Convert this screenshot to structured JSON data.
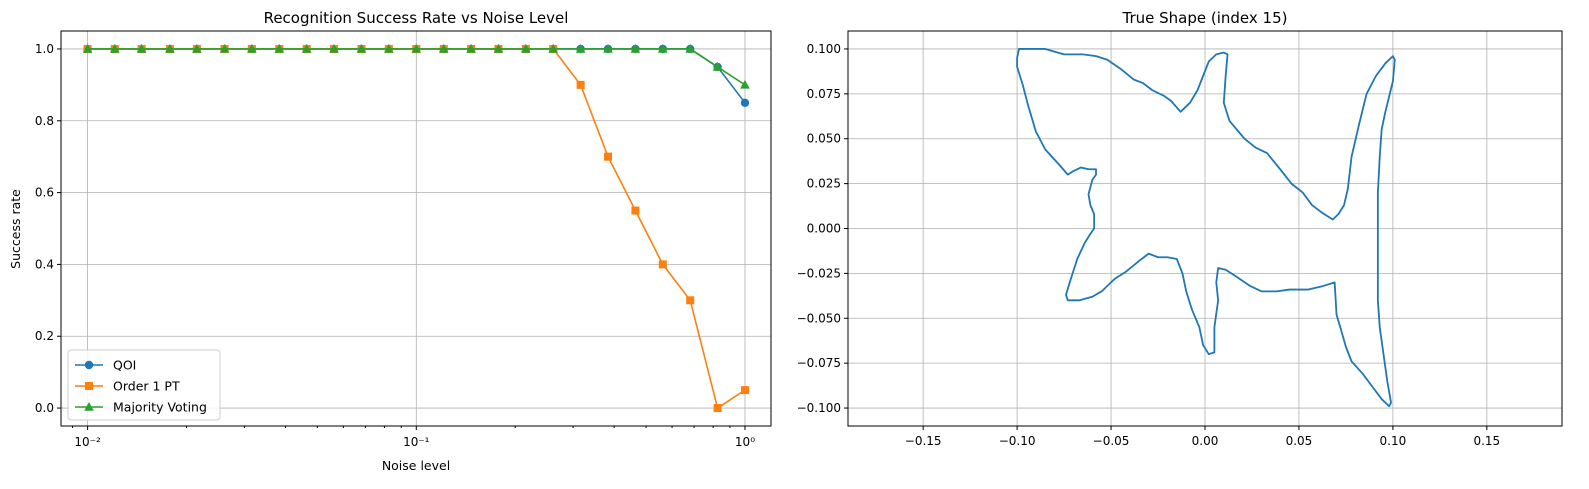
{
  "chart_data": [
    {
      "type": "line",
      "title": "Recognition Success Rate vs Noise Level",
      "xlabel": "Noise level",
      "ylabel": "Success rate",
      "xscale": "log",
      "xlim": [
        0.0083,
        1.2
      ],
      "ylim": [
        -0.05,
        1.05
      ],
      "grid": true,
      "legend_position": "lower-left",
      "xticks": [
        {
          "value": 0.01,
          "label": "10⁻²"
        },
        {
          "value": 0.1,
          "label": "10⁻¹"
        },
        {
          "value": 1,
          "label": "10⁰"
        }
      ],
      "yticks": [
        {
          "value": 0.0,
          "label": "0.0"
        },
        {
          "value": 0.2,
          "label": "0.2"
        },
        {
          "value": 0.4,
          "label": "0.4"
        },
        {
          "value": 0.6,
          "label": "0.6"
        },
        {
          "value": 0.8,
          "label": "0.8"
        },
        {
          "value": 1.0,
          "label": "1.0"
        }
      ],
      "x": [
        0.01,
        0.0121,
        0.0146,
        0.0178,
        0.0215,
        0.0261,
        0.0316,
        0.0383,
        0.0464,
        0.0562,
        0.0681,
        0.0825,
        0.1,
        0.1212,
        0.1468,
        0.1778,
        0.2154,
        0.261,
        0.3162,
        0.3831,
        0.4642,
        0.5623,
        0.6813,
        0.8254,
        1.0
      ],
      "series": [
        {
          "name": "QOI",
          "color": "#1f77b4",
          "marker": "circle",
          "values": [
            1,
            1,
            1,
            1,
            1,
            1,
            1,
            1,
            1,
            1,
            1,
            1,
            1,
            1,
            1,
            1,
            1,
            1,
            1,
            1,
            1,
            1,
            1,
            0.95,
            0.85
          ]
        },
        {
          "name": "Order 1 PT",
          "color": "#ff7f0e",
          "marker": "square",
          "values": [
            1,
            1,
            1,
            1,
            1,
            1,
            1,
            1,
            1,
            1,
            1,
            1,
            1,
            1,
            1,
            1,
            1,
            1,
            0.9,
            0.7,
            0.55,
            0.4,
            0.3,
            0.0,
            0.05
          ]
        },
        {
          "name": "Majority Voting",
          "color": "#2ca02c",
          "marker": "triangle",
          "values": [
            1,
            1,
            1,
            1,
            1,
            1,
            1,
            1,
            1,
            1,
            1,
            1,
            1,
            1,
            1,
            1,
            1,
            1,
            1,
            1,
            1,
            1,
            1,
            0.95,
            0.9
          ]
        }
      ]
    },
    {
      "type": "line",
      "title": "True Shape (index 15)",
      "xlabel": "",
      "ylabel": "",
      "xlim": [
        -0.19,
        0.19
      ],
      "ylim": [
        -0.11,
        0.11
      ],
      "grid": true,
      "xticks": [
        {
          "value": -0.15,
          "label": "−0.15"
        },
        {
          "value": -0.1,
          "label": "−0.10"
        },
        {
          "value": -0.05,
          "label": "−0.05"
        },
        {
          "value": 0.0,
          "label": "0.00"
        },
        {
          "value": 0.05,
          "label": "0.05"
        },
        {
          "value": 0.1,
          "label": "0.10"
        },
        {
          "value": 0.15,
          "label": "0.15"
        }
      ],
      "yticks": [
        {
          "value": -0.1,
          "label": "−0.100"
        },
        {
          "value": -0.075,
          "label": "−0.075"
        },
        {
          "value": -0.05,
          "label": "−0.050"
        },
        {
          "value": -0.025,
          "label": "−0.025"
        },
        {
          "value": 0.0,
          "label": "0.000"
        },
        {
          "value": 0.025,
          "label": "0.025"
        },
        {
          "value": 0.05,
          "label": "0.050"
        },
        {
          "value": 0.075,
          "label": "0.075"
        },
        {
          "value": 0.1,
          "label": "0.100"
        }
      ],
      "series": [
        {
          "color": "#1f77b4",
          "points": [
            [
              -0.1,
              0.095
            ],
            [
              -0.099,
              0.1
            ],
            [
              -0.095,
              0.1
            ],
            [
              -0.085,
              0.1
            ],
            [
              -0.075,
              0.097
            ],
            [
              -0.065,
              0.097
            ],
            [
              -0.058,
              0.096
            ],
            [
              -0.052,
              0.094
            ],
            [
              -0.045,
              0.089
            ],
            [
              -0.038,
              0.083
            ],
            [
              -0.033,
              0.081
            ],
            [
              -0.028,
              0.077
            ],
            [
              -0.022,
              0.074
            ],
            [
              -0.018,
              0.071
            ],
            [
              -0.013,
              0.065
            ],
            [
              -0.008,
              0.07
            ],
            [
              -0.004,
              0.077
            ],
            [
              -0.001,
              0.085
            ],
            [
              0.002,
              0.093
            ],
            [
              0.006,
              0.097
            ],
            [
              0.01,
              0.098
            ],
            [
              0.012,
              0.097
            ],
            [
              0.011,
              0.085
            ],
            [
              0.01,
              0.07
            ],
            [
              0.013,
              0.06
            ],
            [
              0.017,
              0.055
            ],
            [
              0.021,
              0.05
            ],
            [
              0.027,
              0.045
            ],
            [
              0.033,
              0.042
            ],
            [
              0.04,
              0.033
            ],
            [
              0.046,
              0.025
            ],
            [
              0.052,
              0.02
            ],
            [
              0.057,
              0.013
            ],
            [
              0.062,
              0.009
            ],
            [
              0.068,
              0.005
            ],
            [
              0.071,
              0.008
            ],
            [
              0.074,
              0.013
            ],
            [
              0.076,
              0.022
            ],
            [
              0.078,
              0.04
            ],
            [
              0.082,
              0.058
            ],
            [
              0.086,
              0.075
            ],
            [
              0.091,
              0.085
            ],
            [
              0.096,
              0.092
            ],
            [
              0.1,
              0.096
            ],
            [
              0.101,
              0.094
            ],
            [
              0.1,
              0.082
            ],
            [
              0.096,
              0.065
            ],
            [
              0.094,
              0.055
            ],
            [
              0.093,
              0.04
            ],
            [
              0.092,
              0.02
            ],
            [
              0.092,
              0.0
            ],
            [
              0.092,
              -0.02
            ],
            [
              0.092,
              -0.04
            ],
            [
              0.093,
              -0.055
            ],
            [
              0.095,
              -0.07
            ],
            [
              0.097,
              -0.085
            ],
            [
              0.099,
              -0.097
            ],
            [
              0.098,
              -0.099
            ],
            [
              0.094,
              -0.095
            ],
            [
              0.089,
              -0.088
            ],
            [
              0.084,
              -0.081
            ],
            [
              0.078,
              -0.074
            ],
            [
              0.075,
              -0.066
            ],
            [
              0.072,
              -0.055
            ],
            [
              0.07,
              -0.048
            ],
            [
              0.069,
              -0.03
            ],
            [
              0.063,
              -0.032
            ],
            [
              0.055,
              -0.034
            ],
            [
              0.045,
              -0.034
            ],
            [
              0.038,
              -0.035
            ],
            [
              0.03,
              -0.035
            ],
            [
              0.024,
              -0.032
            ],
            [
              0.017,
              -0.027
            ],
            [
              0.011,
              -0.023
            ],
            [
              0.007,
              -0.022
            ],
            [
              0.006,
              -0.03
            ],
            [
              0.007,
              -0.04
            ],
            [
              0.005,
              -0.055
            ],
            [
              0.005,
              -0.069
            ],
            [
              0.002,
              -0.07
            ],
            [
              -0.001,
              -0.065
            ],
            [
              -0.003,
              -0.055
            ],
            [
              -0.007,
              -0.045
            ],
            [
              -0.01,
              -0.035
            ],
            [
              -0.012,
              -0.025
            ],
            [
              -0.015,
              -0.017
            ],
            [
              -0.02,
              -0.016
            ],
            [
              -0.025,
              -0.016
            ],
            [
              -0.03,
              -0.014
            ],
            [
              -0.035,
              -0.018
            ],
            [
              -0.042,
              -0.024
            ],
            [
              -0.048,
              -0.028
            ],
            [
              -0.055,
              -0.035
            ],
            [
              -0.06,
              -0.038
            ],
            [
              -0.067,
              -0.04
            ],
            [
              -0.073,
              -0.04
            ],
            [
              -0.074,
              -0.037
            ],
            [
              -0.072,
              -0.03
            ],
            [
              -0.068,
              -0.017
            ],
            [
              -0.064,
              -0.008
            ],
            [
              -0.061,
              -0.003
            ],
            [
              -0.059,
              0.0
            ],
            [
              -0.059,
              0.008
            ],
            [
              -0.061,
              0.013
            ],
            [
              -0.062,
              0.019
            ],
            [
              -0.06,
              0.027
            ],
            [
              -0.058,
              0.03
            ],
            [
              -0.058,
              0.033
            ],
            [
              -0.062,
              0.033
            ],
            [
              -0.066,
              0.034
            ],
            [
              -0.07,
              0.032
            ],
            [
              -0.073,
              0.03
            ],
            [
              -0.078,
              0.036
            ],
            [
              -0.085,
              0.044
            ],
            [
              -0.09,
              0.054
            ],
            [
              -0.094,
              0.068
            ],
            [
              -0.097,
              0.08
            ],
            [
              -0.1,
              0.09
            ],
            [
              -0.1,
              0.095
            ]
          ]
        }
      ]
    }
  ]
}
